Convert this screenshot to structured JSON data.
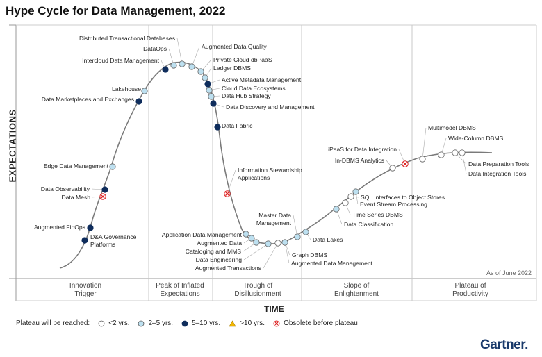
{
  "title": "Hype Cycle for Data Management, 2022",
  "y_axis_label": "EXPECTATIONS",
  "x_axis_label": "TIME",
  "as_of": "As of June 2022",
  "phases": [
    {
      "line1": "Innovation",
      "line2": "Trigger"
    },
    {
      "line1": "Peak of Inflated",
      "line2": "Expectations"
    },
    {
      "line1": "Trough of",
      "line2": "Disillusionment"
    },
    {
      "line1": "Slope of",
      "line2": "Enlightenment"
    },
    {
      "line1": "Plateau of",
      "line2": "Productivity"
    }
  ],
  "legend": {
    "intro": "Plateau will be reached:",
    "items": [
      {
        "type": "lt2",
        "label": "<2 yrs."
      },
      {
        "type": "2to5",
        "label": "2–5 yrs."
      },
      {
        "type": "5to10",
        "label": "5–10 yrs."
      },
      {
        "type": "gt10",
        "label": ">10 yrs."
      },
      {
        "type": "obsolete",
        "label": "Obsolete before plateau"
      }
    ]
  },
  "marker_colors": {
    "lt2": "#ffffff",
    "2to5": "#bde0f0",
    "5to10": "#0f2d5c",
    "gt10": "#f2b600",
    "obsolete": "#ffffff"
  },
  "technologies": [
    "D&A Governance Platforms",
    "Augmented FinOps",
    "Data Mesh",
    "Data Observability",
    "Edge Data Management",
    "Data Marketplaces and Exchanges",
    "Lakehouse",
    "Intercloud Data Management",
    "DataOps",
    "Distributed Transactional Databases",
    "Augmented Data Quality",
    "Private Cloud dbPaaS",
    "Ledger DBMS",
    "Active Metadata Management",
    "Cloud Data Ecosystems",
    "Data Hub Strategy",
    "Data Discovery and Management",
    "Data Fabric",
    "Information Stewardship Applications",
    "Application Data Management",
    "Augmented Data",
    "Cataloging and MMS",
    "Data Engineering",
    "Augmented Transactions",
    "Graph DBMS",
    "Augmented Data Management",
    "Master Data Management",
    "Data Lakes",
    "Data Classification",
    "Time Series DBMS",
    "SQL Interfaces to Object Stores",
    "Event Stream Processing",
    "In-DBMS Analytics",
    "iPaaS for Data Integration",
    "Multimodel DBMS",
    "Wide-Column DBMS",
    "Data Preparation Tools",
    "Data Integration Tools"
  ],
  "brand": "Gartner"
}
